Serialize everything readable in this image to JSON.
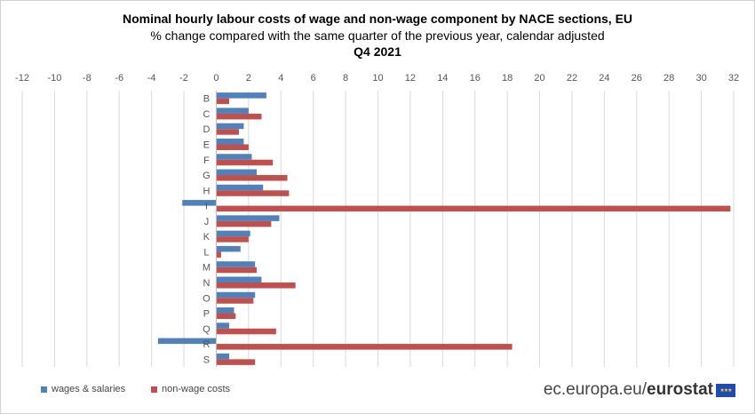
{
  "chart_data": {
    "type": "bar",
    "orientation": "horizontal",
    "title": "Nominal hourly labour costs of wage and non-wage component by NACE sections, EU",
    "subtitle": "% change compared with the same quarter of the previous year, calendar adjusted",
    "period": "Q4 2021",
    "xlim": [
      -12,
      32
    ],
    "xticks": [
      -12,
      -10,
      -8,
      -6,
      -4,
      -2,
      0,
      2,
      4,
      6,
      8,
      10,
      12,
      14,
      16,
      18,
      20,
      22,
      24,
      26,
      28,
      30,
      32
    ],
    "grid": true,
    "categories": [
      "B",
      "C",
      "D",
      "E",
      "F",
      "G",
      "H",
      "I",
      "J",
      "K",
      "L",
      "M",
      "N",
      "O",
      "P",
      "Q",
      "R",
      "S"
    ],
    "series": [
      {
        "name": "wages & salaries",
        "color": "#4f81bd",
        "values": [
          3.1,
          2.0,
          1.7,
          1.7,
          2.2,
          2.5,
          2.9,
          -2.1,
          3.9,
          2.1,
          1.5,
          2.4,
          2.8,
          2.4,
          1.1,
          0.8,
          -3.6,
          0.8
        ]
      },
      {
        "name": "non-wage costs",
        "color": "#c0504d",
        "values": [
          0.8,
          2.8,
          1.4,
          2.0,
          3.5,
          4.4,
          4.5,
          31.8,
          3.4,
          2.0,
          0.3,
          2.5,
          4.9,
          2.3,
          1.2,
          3.7,
          18.3,
          2.4
        ]
      }
    ]
  },
  "legend": {
    "wages_label": "wages & salaries",
    "nonwage_label": "non-wage costs"
  },
  "brand": {
    "site": "ec.europa.eu/",
    "name": "eurostat"
  }
}
